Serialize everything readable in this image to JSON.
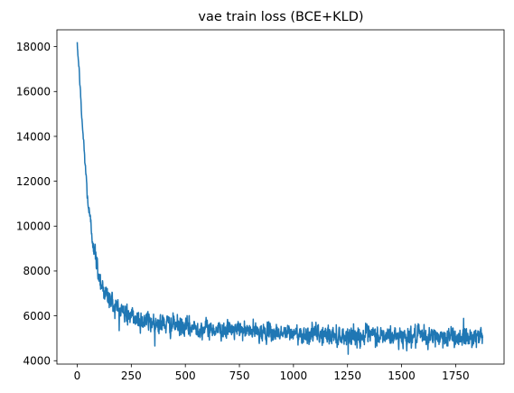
{
  "chart_data": {
    "type": "line",
    "title": "vae train loss (BCE+KLD)",
    "xlabel": "",
    "ylabel": "",
    "xlim": [
      -94,
      1974
    ],
    "ylim": [
      3850,
      18750
    ],
    "xticks": [
      0,
      250,
      500,
      750,
      1000,
      1250,
      1500,
      1750
    ],
    "yticks": [
      4000,
      6000,
      8000,
      10000,
      12000,
      14000,
      16000,
      18000
    ],
    "grid": false,
    "legend": "none",
    "series": [
      {
        "color": "#1f77b4",
        "num_points": 1876,
        "x_start": 0,
        "x_step": 1,
        "trend": [
          [
            0,
            18050
          ],
          [
            10,
            16800
          ],
          [
            20,
            15000
          ],
          [
            35,
            13000
          ],
          [
            50,
            11000
          ],
          [
            70,
            9500
          ],
          [
            90,
            8300
          ],
          [
            110,
            7500
          ],
          [
            130,
            7000
          ],
          [
            160,
            6600
          ],
          [
            200,
            6250
          ],
          [
            250,
            5950
          ],
          [
            300,
            5800
          ],
          [
            400,
            5650
          ],
          [
            500,
            5500
          ],
          [
            600,
            5420
          ],
          [
            700,
            5380
          ],
          [
            800,
            5320
          ],
          [
            900,
            5250
          ],
          [
            1000,
            5220
          ],
          [
            1100,
            5180
          ],
          [
            1200,
            5120
          ],
          [
            1300,
            5100
          ],
          [
            1400,
            5100
          ],
          [
            1500,
            5080
          ],
          [
            1600,
            5060
          ],
          [
            1700,
            5060
          ],
          [
            1800,
            5070
          ],
          [
            1875,
            5100
          ]
        ],
        "noise_band": [
          [
            0,
            100
          ],
          [
            100,
            450
          ],
          [
            200,
            420
          ],
          [
            400,
            380
          ],
          [
            600,
            330
          ],
          [
            800,
            310
          ],
          [
            1000,
            330
          ],
          [
            1200,
            360
          ],
          [
            1500,
            380
          ],
          [
            1875,
            380
          ]
        ]
      }
    ]
  }
}
